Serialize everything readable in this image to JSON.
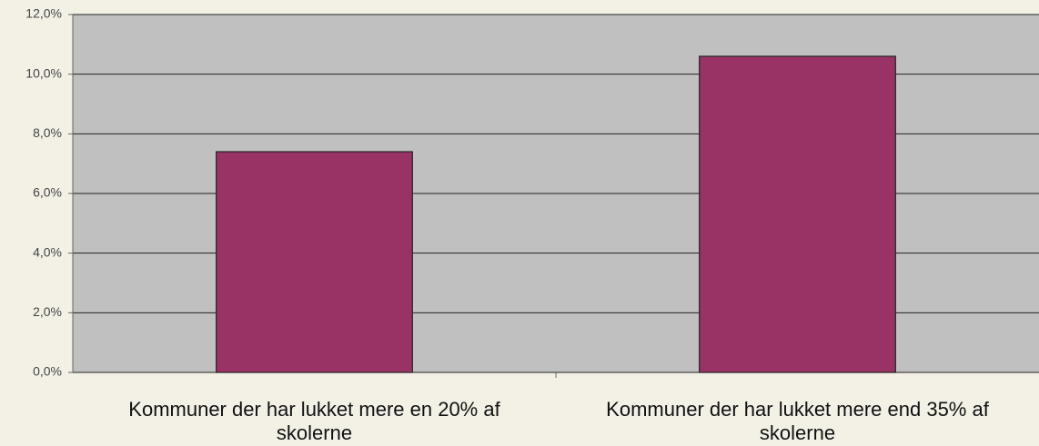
{
  "chart_data": {
    "type": "bar",
    "categories": [
      "Kommuner der har lukket mere en 20% af skolerne",
      "Kommuner der har lukket mere end 35% af skolerne"
    ],
    "values": [
      7.4,
      10.6
    ],
    "color": "#993366",
    "ylim": [
      0,
      12
    ],
    "yticks": [
      {
        "value": 0,
        "label": "0,0%"
      },
      {
        "value": 2,
        "label": "2,0%"
      },
      {
        "value": 4,
        "label": "4,0%"
      },
      {
        "value": 6,
        "label": "6,0%"
      },
      {
        "value": 8,
        "label": "8,0%"
      },
      {
        "value": 10,
        "label": "10,0%"
      },
      {
        "value": 12,
        "label": "12,0%"
      }
    ],
    "grid": true
  }
}
